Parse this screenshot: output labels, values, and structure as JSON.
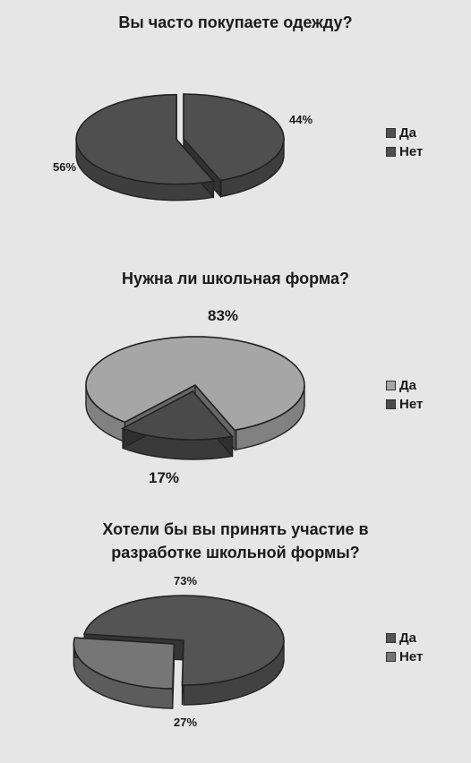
{
  "chart_data": [
    {
      "type": "pie",
      "title": "Вы часто покупаете одежду?",
      "categories": [
        "Да",
        "Нет"
      ],
      "values": [
        44,
        56
      ],
      "labels": [
        "44%",
        "56%"
      ],
      "colors": [
        "#4f4f4f",
        "#4f4f4f"
      ],
      "legend": {
        "position": "right",
        "entries": [
          "Да",
          "Нет"
        ]
      }
    },
    {
      "type": "pie",
      "title": "Нужна ли школьная форма?",
      "categories": [
        "Да",
        "Нет"
      ],
      "values": [
        83,
        17
      ],
      "labels": [
        "83%",
        "17%"
      ],
      "colors": [
        "#a6a6a6",
        "#4a4a4a"
      ],
      "legend": {
        "position": "right",
        "entries": [
          "Да",
          "Нет"
        ]
      }
    },
    {
      "type": "pie",
      "title_lines": [
        "Хотели бы вы принять участие в",
        "разработке школьной формы?"
      ],
      "categories": [
        "Да",
        "Нет"
      ],
      "values": [
        73,
        27
      ],
      "labels": [
        "73%",
        "27%"
      ],
      "colors": [
        "#545454",
        "#767676"
      ],
      "legend": {
        "position": "right",
        "entries": [
          "Да",
          "Нет"
        ]
      }
    }
  ]
}
